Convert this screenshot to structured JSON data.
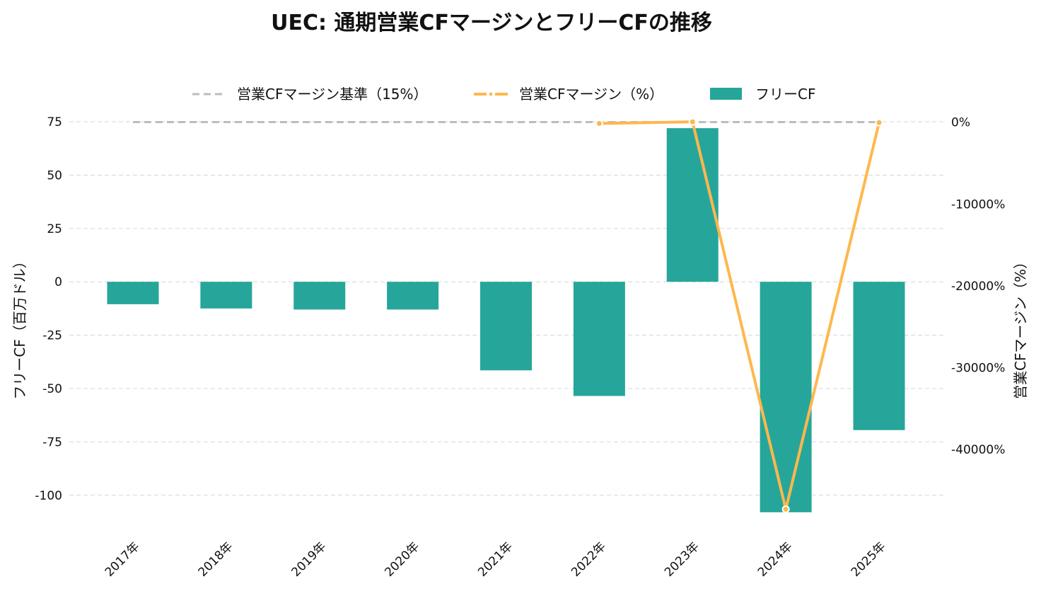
{
  "chart_data": {
    "type": "bar",
    "title": "UEC: 通期営業CFマージンとフリーCFの推移",
    "categories": [
      "2017年",
      "2018年",
      "2019年",
      "2020年",
      "2021年",
      "2022年",
      "2023年",
      "2024年",
      "2025年"
    ],
    "ylabel": "フリーCF（百万ドル）",
    "y2label": "営業CFマージン（%）",
    "ylim": [
      -115,
      79
    ],
    "y2lim": [
      -49500,
      1100
    ],
    "yticks": [
      "75",
      "50",
      "25",
      "0",
      "-25",
      "-50",
      "-75",
      "-100"
    ],
    "y2ticks": [
      "0%",
      "-10000%",
      "-20000%",
      "-30000%",
      "-40000%"
    ],
    "grid": true,
    "legend_position": "top-center",
    "series": [
      {
        "name": "フリーCF",
        "kind": "bar",
        "color": "#26a69a",
        "values": [
          -10.5,
          -12.5,
          -13,
          -13,
          -41.5,
          -53.5,
          72,
          -108,
          -69.5
        ]
      },
      {
        "name": "営業CFマージン（%）",
        "kind": "line",
        "axis": "right",
        "color": "#ffb74d",
        "values": [
          null,
          null,
          null,
          null,
          null,
          -150,
          50,
          -47300,
          -50
        ]
      },
      {
        "name": "営業CFマージン基準（15%）",
        "kind": "reference-line",
        "axis": "right",
        "color": "#bdbdbd",
        "value": 15
      }
    ]
  }
}
